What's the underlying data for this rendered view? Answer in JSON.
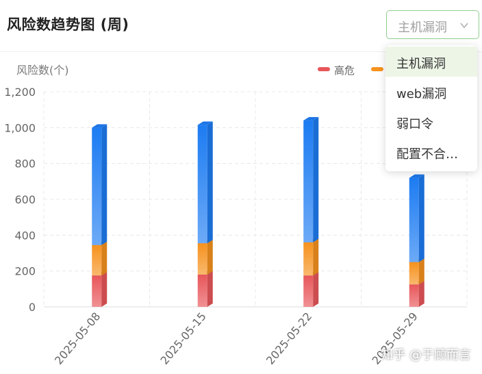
{
  "header": {
    "title": "风险数趋势图 (周)"
  },
  "filter": {
    "value": "主机漏洞",
    "options": [
      "主机漏洞",
      "web漏洞",
      "弱口令",
      "配置不合…"
    ]
  },
  "watermark": "知乎 @于顾而言",
  "colors": {
    "accent": "#8fcf8f",
    "high": "#e8565a",
    "medium": "#f6921e",
    "low": "#1d7cf2",
    "grid": "#e6e6e6"
  },
  "chart_data": {
    "type": "bar",
    "stacked": true,
    "title": "",
    "ylabel": "风险数(个)",
    "xlabel": "",
    "categories": [
      "2025-05-08",
      "2025-05-15",
      "2025-05-22",
      "2025-05-29"
    ],
    "ylim": [
      0,
      1200
    ],
    "yticks": [
      0,
      200,
      400,
      600,
      800,
      1000,
      1200
    ],
    "ytick_labels": [
      "0",
      "200",
      "400",
      "600",
      "800",
      "1,000",
      "1,200"
    ],
    "legend_position": "top-right",
    "series": [
      {
        "name": "高危",
        "color": "#e8565a",
        "values": [
          175,
          180,
          175,
          125
        ]
      },
      {
        "name": "",
        "color": "#f6921e",
        "values": [
          170,
          175,
          185,
          125
        ]
      },
      {
        "name": "",
        "color": "#1d7cf2",
        "values": [
          655,
          660,
          680,
          470
        ]
      }
    ]
  }
}
